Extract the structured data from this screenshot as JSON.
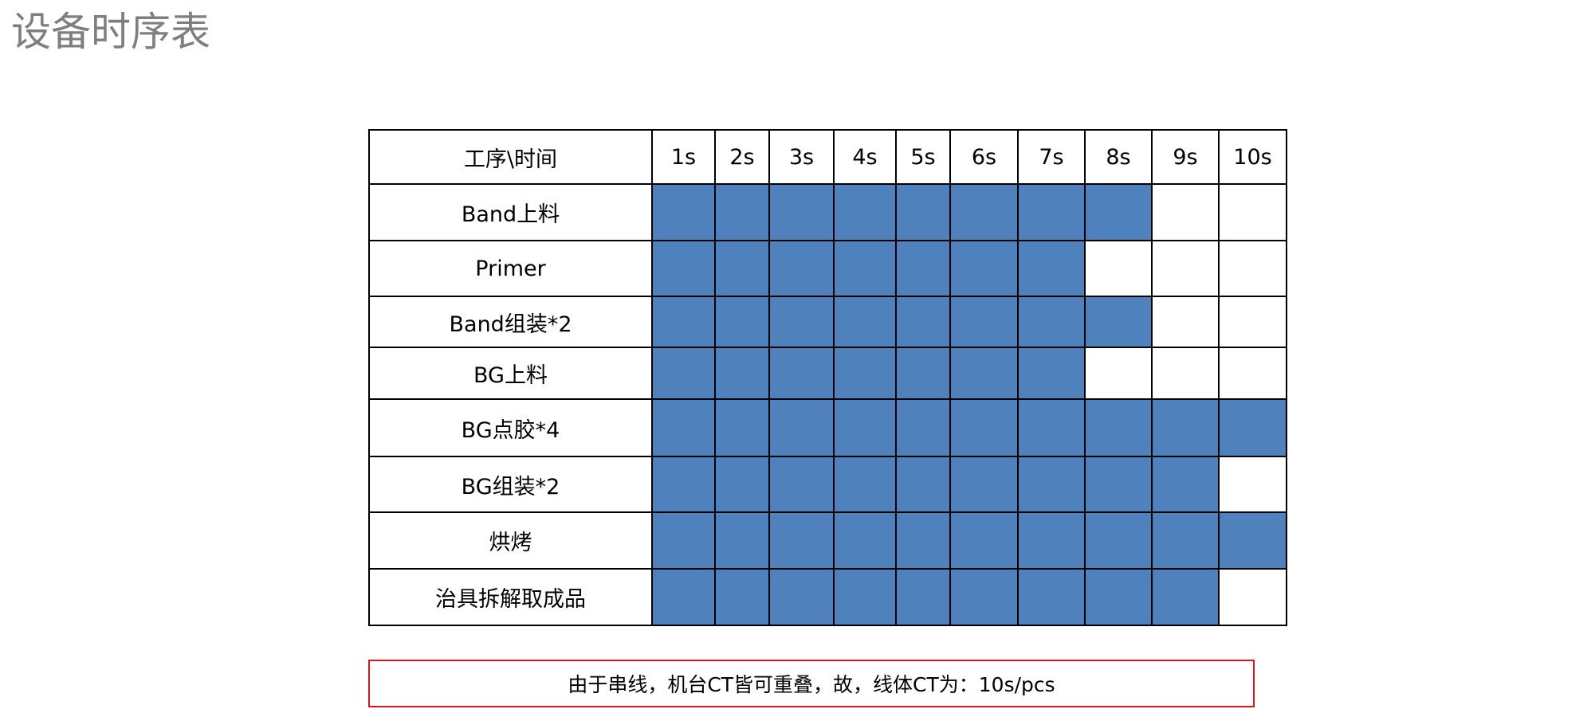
{
  "title": "设备时序表",
  "table": {
    "corner_header": "工序\\时间",
    "time_headers": [
      "1s",
      "2s",
      "3s",
      "4s",
      "5s",
      "6s",
      "7s",
      "8s",
      "9s",
      "10s"
    ],
    "fill_color": "#4f81bd",
    "rows": [
      {
        "process": "Band上料",
        "active_seconds": 8
      },
      {
        "process": "Primer",
        "active_seconds": 7
      },
      {
        "process": "Band组装*2",
        "active_seconds": 8
      },
      {
        "process": "BG上料",
        "active_seconds": 7
      },
      {
        "process": "BG点胶*4",
        "active_seconds": 10
      },
      {
        "process": "BG组装*2",
        "active_seconds": 9
      },
      {
        "process": "烘烤",
        "active_seconds": 10
      },
      {
        "process": "治具拆解取成品",
        "active_seconds": 9
      }
    ]
  },
  "note": "由于串线，机台CT皆可重叠，故，线体CT为：10s/pcs"
}
